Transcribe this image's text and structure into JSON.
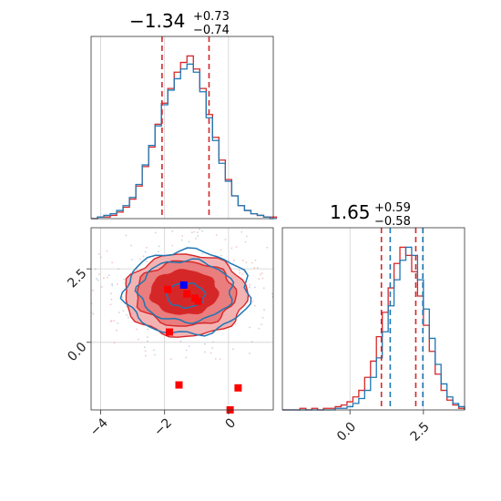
{
  "chart_data": {
    "type": "corner",
    "parameters": [
      "x0",
      "x1"
    ],
    "colors": {
      "sample_a": "#d62728",
      "sample_b": "#1f77b4",
      "truth_marker": "#0000ff",
      "points": "#ff0000"
    },
    "panels": [
      {
        "name": "marginal-x0",
        "type": "histogram",
        "title": {
          "median": "−1.34",
          "plus": "+0.73",
          "minus": "−0.74"
        },
        "xlim": [
          -4.3,
          1.4
        ],
        "x_ticks": [
          -4,
          -2,
          0
        ],
        "quantile_lines": [
          -2.08,
          -0.61
        ],
        "series": [
          {
            "name": "",
            "color": "#d62728",
            "x": [
              -4.3,
              -4.1,
              -3.9,
              -3.7,
              -3.5,
              -3.3,
              -3.1,
              -2.9,
              -2.7,
              -2.5,
              -2.3,
              -2.1,
              -1.9,
              -1.7,
              -1.5,
              -1.3,
              -1.1,
              -0.9,
              -0.7,
              -0.5,
              -0.3,
              -0.1,
              0.1,
              0.3,
              0.5,
              0.7,
              0.9,
              1.1,
              1.3
            ],
            "y": [
              0,
              1,
              1,
              2,
              4,
              7,
              12,
              20,
              32,
              44,
              58,
              71,
              80,
              90,
              96,
              100,
              92,
              80,
              64,
              50,
              36,
              24,
              14,
              8,
              5,
              3,
              2,
              1,
              1
            ]
          },
          {
            "name": "",
            "color": "#1f77b4",
            "x": [
              -4.3,
              -4.1,
              -3.9,
              -3.7,
              -3.5,
              -3.3,
              -3.1,
              -2.9,
              -2.7,
              -2.5,
              -2.3,
              -2.1,
              -1.9,
              -1.7,
              -1.5,
              -1.3,
              -1.1,
              -0.9,
              -0.7,
              -0.5,
              -0.3,
              -0.1,
              0.1,
              0.3,
              0.5,
              0.7,
              0.9,
              1.1,
              1.3
            ],
            "y": [
              0,
              1,
              2,
              3,
              5,
              8,
              13,
              21,
              33,
              45,
              57,
              70,
              79,
              86,
              92,
              95,
              90,
              78,
              62,
              48,
              34,
              23,
              14,
              8,
              5,
              3,
              2,
              1,
              0
            ]
          }
        ]
      },
      {
        "name": "joint-x0-x1",
        "type": "contour",
        "xlim": [
          -4.3,
          1.4
        ],
        "ylim": [
          -2.3,
          3.9
        ],
        "x_ticks": [
          -4,
          -2,
          0
        ],
        "y_ticks": [
          0.0,
          2.5
        ],
        "y_tick_labels": [
          "0.0",
          "2.5"
        ],
        "x_tick_labels": [
          "−4",
          "−2",
          "0"
        ],
        "center": [
          -1.34,
          1.65
        ],
        "contour_sizes": [
          {
            "level": "inner",
            "rx": 1.0,
            "ry": 0.75
          },
          {
            "level": "middle",
            "rx": 1.55,
            "ry": 1.1
          },
          {
            "level": "outer",
            "rx": 1.95,
            "ry": 1.4
          }
        ],
        "truth_point": [
          -1.4,
          1.95
        ],
        "points": [
          [
            -1.9,
            1.8
          ],
          [
            -1.3,
            1.65
          ],
          [
            -1.05,
            1.5
          ],
          [
            -0.95,
            1.4
          ],
          [
            -1.85,
            0.35
          ],
          [
            -1.55,
            -1.45
          ],
          [
            0.3,
            -1.55
          ],
          [
            0.05,
            -2.3
          ]
        ]
      },
      {
        "name": "marginal-x1",
        "type": "histogram",
        "title": {
          "median": "1.65",
          "plus": "+0.59",
          "minus": "−0.58"
        },
        "xlim": [
          -2.3,
          3.9
        ],
        "x_ticks": [
          0.0,
          2.5
        ],
        "x_tick_labels": [
          "0.0",
          "2.5"
        ],
        "series": [
          {
            "name": "",
            "color": "#d62728",
            "quantile_lines": [
              1.07,
              2.24
            ],
            "x": [
              -2.3,
              -2.1,
              -1.9,
              -1.7,
              -1.5,
              -1.3,
              -1.1,
              -0.9,
              -0.7,
              -0.5,
              -0.3,
              -0.1,
              0.1,
              0.3,
              0.5,
              0.7,
              0.9,
              1.1,
              1.3,
              1.5,
              1.7,
              1.9,
              2.1,
              2.3,
              2.5,
              2.7,
              2.9,
              3.1,
              3.3,
              3.5,
              3.7
            ],
            "y": [
              0,
              0,
              0,
              1,
              0,
              1,
              0,
              1,
              1,
              2,
              3,
              5,
              8,
              12,
              20,
              30,
              45,
              60,
              75,
              90,
              100,
              95,
              85,
              70,
              52,
              36,
              22,
              12,
              6,
              3,
              1
            ]
          },
          {
            "name": "",
            "color": "#1f77b4",
            "quantile_lines": [
              1.37,
              2.48
            ],
            "x": [
              -2.3,
              -2.1,
              -1.9,
              -1.7,
              -1.5,
              -1.3,
              -1.1,
              -0.9,
              -0.7,
              -0.5,
              -0.3,
              -0.1,
              0.1,
              0.3,
              0.5,
              0.7,
              0.9,
              1.1,
              1.3,
              1.5,
              1.7,
              1.9,
              2.1,
              2.3,
              2.5,
              2.7,
              2.9,
              3.1,
              3.3,
              3.5,
              3.7
            ],
            "y": [
              0,
              0,
              0,
              0,
              0,
              0,
              0,
              0,
              0,
              1,
              1,
              2,
              4,
              7,
              12,
              20,
              32,
              48,
              64,
              80,
              92,
              100,
              95,
              80,
              62,
              44,
              28,
              16,
              8,
              4,
              2
            ]
          }
        ]
      }
    ]
  }
}
